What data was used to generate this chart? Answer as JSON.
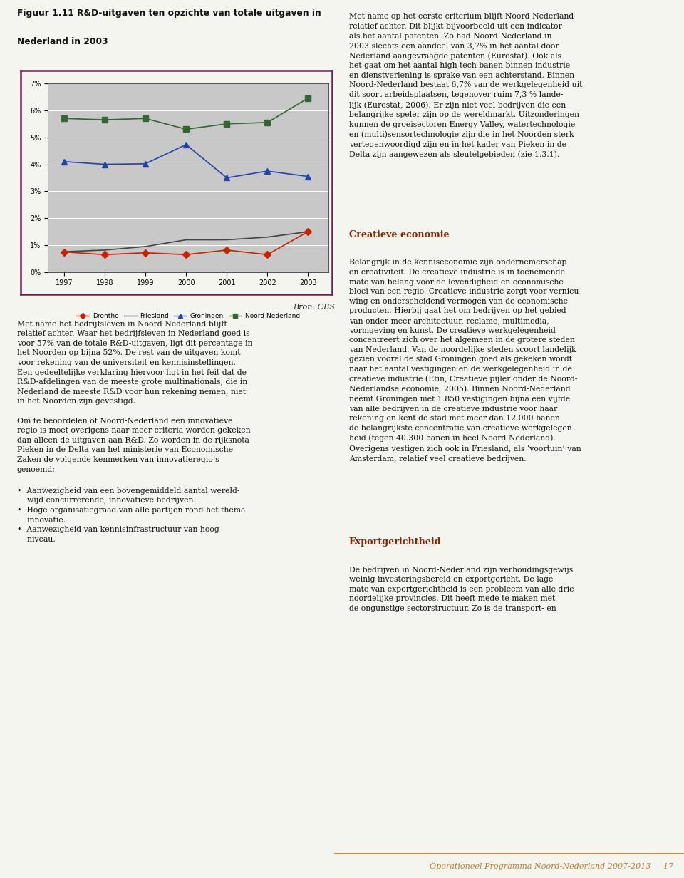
{
  "title_line1": "Figuur 1.11 R&D-uitgaven ten opzichte van totale uitgaven in",
  "title_line2": "Nederland in 2003",
  "years": [
    1997,
    1998,
    1999,
    2000,
    2001,
    2002,
    2003
  ],
  "series": {
    "Drenthe": {
      "values": [
        0.75,
        0.65,
        0.72,
        0.65,
        0.82,
        0.65,
        1.5
      ],
      "color": "#cc2200",
      "marker": "D",
      "linewidth": 1.2,
      "markersize": 5
    },
    "Friesland": {
      "values": [
        0.76,
        0.82,
        0.95,
        1.2,
        1.2,
        1.3,
        1.5
      ],
      "color": "#444444",
      "marker": "None",
      "linewidth": 1.2,
      "markersize": 0
    },
    "Groningen": {
      "values": [
        4.1,
        4.0,
        4.02,
        4.73,
        3.5,
        3.75,
        3.55
      ],
      "color": "#2244aa",
      "marker": "^",
      "linewidth": 1.2,
      "markersize": 6
    },
    "Noord Nederland": {
      "values": [
        5.7,
        5.65,
        5.7,
        5.3,
        5.5,
        5.55,
        6.45
      ],
      "color": "#336633",
      "marker": "s",
      "linewidth": 1.2,
      "markersize": 6
    }
  },
  "ylim": [
    0,
    7
  ],
  "yticks": [
    0,
    1,
    2,
    3,
    4,
    5,
    6,
    7
  ],
  "ytick_labels": [
    "0%",
    "1%",
    "2%",
    "3%",
    "4%",
    "5%",
    "6%",
    "7%"
  ],
  "chart_bg": "#c8c8c8",
  "border_color": "#7a1a4a",
  "source_text": "Bron: CBS",
  "page_bg": "#f5f5f0",
  "footer_line_color": "#cc7722",
  "footer_text_color": "#cc7722",
  "footer_text": "Operationeel Programma Noord-Nederland 2007-2013     17",
  "creative_title_color": "#8B2200",
  "export_title_color": "#8B2200"
}
